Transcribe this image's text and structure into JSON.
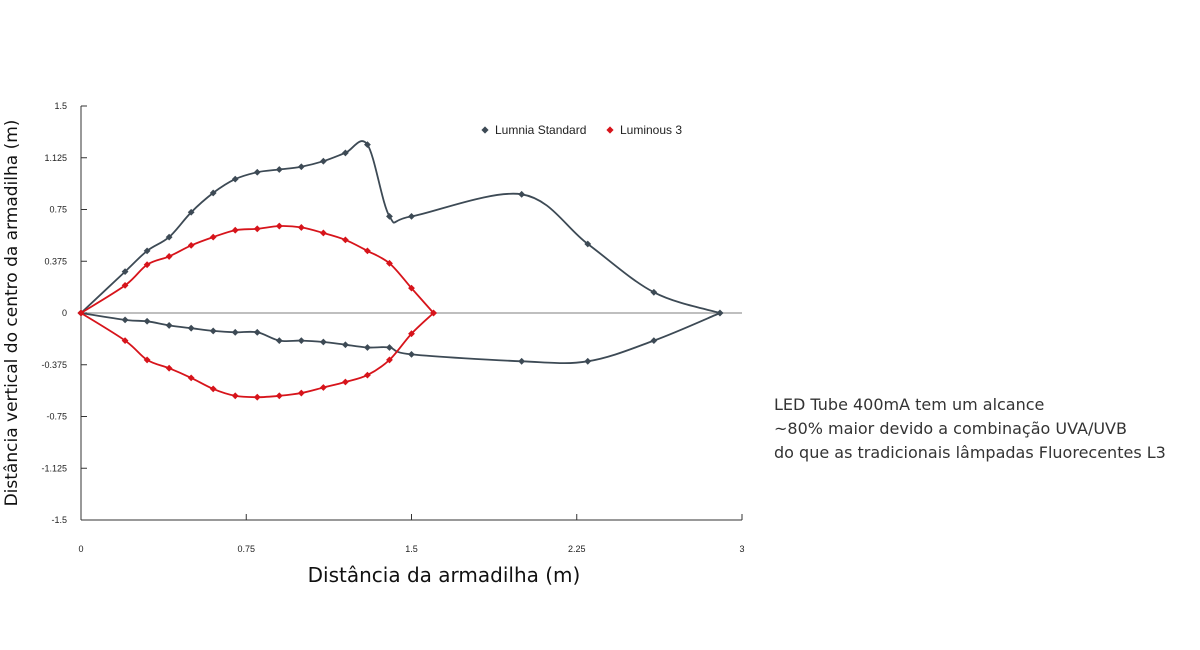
{
  "chart_data": {
    "type": "line",
    "title": "",
    "xlabel": "Distância da armadilha (m)",
    "ylabel": "Distância vertical do centro da armadilha (m)",
    "xlim": [
      0,
      3
    ],
    "ylim": [
      -1.5,
      1.5
    ],
    "x_ticks": [
      "0",
      "0.75",
      "1.5",
      "2.25",
      "3"
    ],
    "y_ticks": [
      "1.5",
      "1.125",
      "0.75",
      "0.375",
      "0",
      "-0.375",
      "-0.75",
      "-1.125",
      "-1.5"
    ],
    "grid": false,
    "legend_position": "top-right",
    "series": [
      {
        "name": "Lumnia Standard",
        "color": "#3d4a55",
        "marker": "diamond",
        "upper": [
          [
            0,
            0
          ],
          [
            0.2,
            0.3
          ],
          [
            0.3,
            0.45
          ],
          [
            0.4,
            0.55
          ],
          [
            0.5,
            0.73
          ],
          [
            0.6,
            0.87
          ],
          [
            0.7,
            0.97
          ],
          [
            0.8,
            1.02
          ],
          [
            0.9,
            1.04
          ],
          [
            1.0,
            1.06
          ],
          [
            1.1,
            1.1
          ],
          [
            1.2,
            1.16
          ],
          [
            1.3,
            1.22
          ],
          [
            1.4,
            0.7
          ],
          [
            1.5,
            0.7
          ],
          [
            2.0,
            0.86
          ],
          [
            2.3,
            0.5
          ],
          [
            2.6,
            0.15
          ],
          [
            2.9,
            0
          ]
        ],
        "lower": [
          [
            0,
            0
          ],
          [
            0.2,
            -0.05
          ],
          [
            0.3,
            -0.06
          ],
          [
            0.4,
            -0.09
          ],
          [
            0.5,
            -0.11
          ],
          [
            0.6,
            -0.13
          ],
          [
            0.7,
            -0.14
          ],
          [
            0.8,
            -0.14
          ],
          [
            0.9,
            -0.2
          ],
          [
            1.0,
            -0.2
          ],
          [
            1.1,
            -0.21
          ],
          [
            1.2,
            -0.23
          ],
          [
            1.3,
            -0.25
          ],
          [
            1.4,
            -0.25
          ],
          [
            1.5,
            -0.3
          ],
          [
            2.0,
            -0.35
          ],
          [
            2.3,
            -0.35
          ],
          [
            2.6,
            -0.2
          ],
          [
            2.9,
            0
          ]
        ]
      },
      {
        "name": "Luminous 3",
        "color": "#d7141b",
        "marker": "diamond",
        "upper": [
          [
            0,
            0
          ],
          [
            0.2,
            0.2
          ],
          [
            0.3,
            0.35
          ],
          [
            0.4,
            0.41
          ],
          [
            0.5,
            0.49
          ],
          [
            0.6,
            0.55
          ],
          [
            0.7,
            0.6
          ],
          [
            0.8,
            0.61
          ],
          [
            0.9,
            0.63
          ],
          [
            1.0,
            0.62
          ],
          [
            1.1,
            0.58
          ],
          [
            1.2,
            0.53
          ],
          [
            1.3,
            0.45
          ],
          [
            1.4,
            0.36
          ],
          [
            1.5,
            0.18
          ],
          [
            1.6,
            0
          ]
        ],
        "lower": [
          [
            0,
            0
          ],
          [
            0.2,
            -0.2
          ],
          [
            0.3,
            -0.34
          ],
          [
            0.4,
            -0.4
          ],
          [
            0.5,
            -0.47
          ],
          [
            0.6,
            -0.55
          ],
          [
            0.7,
            -0.6
          ],
          [
            0.8,
            -0.61
          ],
          [
            0.9,
            -0.6
          ],
          [
            1.0,
            -0.58
          ],
          [
            1.1,
            -0.54
          ],
          [
            1.2,
            -0.5
          ],
          [
            1.3,
            -0.45
          ],
          [
            1.4,
            -0.34
          ],
          [
            1.5,
            -0.15
          ],
          [
            1.6,
            0
          ]
        ]
      }
    ]
  },
  "annotation": {
    "line1": "LED Tube 400mA tem um alcance",
    "line2": "~80% maior devido a combinação UVA/UVB",
    "line3": "do que as tradicionais lâmpadas Fluorecentes L3"
  }
}
